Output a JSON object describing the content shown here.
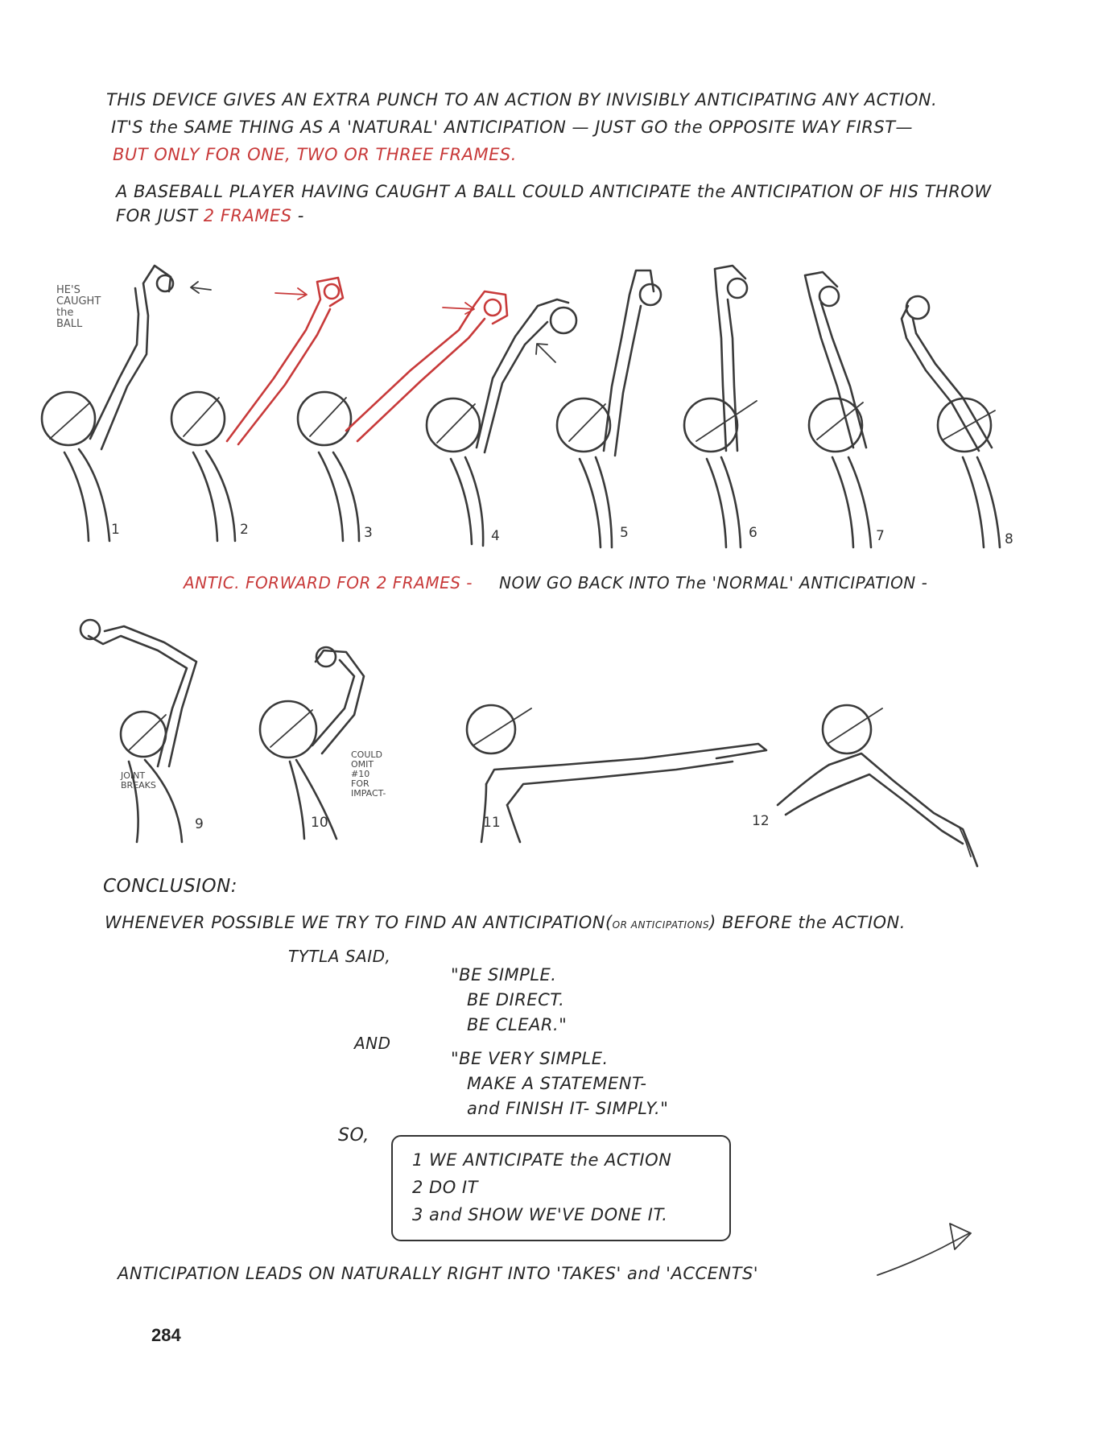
{
  "intro": {
    "line1": "THIS DEVICE GIVES AN EXTRA PUNCH TO AN ACTION BY INVISIBLY ANTICIPATING ANY ACTION.",
    "line2": "IT'S the SAME THING AS A 'NATURAL' ANTICIPATION — JUST GO the OPPOSITE WAY FIRST—",
    "line3_red": "BUT ONLY FOR ONE, TWO OR THREE FRAMES.",
    "line4": "A BASEBALL PLAYER HAVING CAUGHT A BALL COULD ANTICIPATE the ANTICIPATION OF HIS THROW",
    "line5_prefix": "FOR JUST",
    "line5_red": "2 FRAMES",
    "line5_suffix": "-"
  },
  "row1": {
    "note": [
      "HE'S",
      "CAUGHT",
      "the",
      "BALL"
    ],
    "frame_numbers": [
      "1",
      "2",
      "3",
      "4",
      "5",
      "6",
      "7",
      "8"
    ],
    "caption_red": "ANTIC. FORWARD FOR 2 FRAMES -",
    "caption_black": "NOW GO BACK INTO The 'NORMAL' ANTICIPATION -"
  },
  "row2": {
    "note_joint": [
      "JOINT",
      "BREAKS"
    ],
    "note_omit": [
      "COULD",
      "OMIT",
      "#10",
      "FOR",
      "IMPACT-"
    ],
    "frame_numbers": [
      "9",
      "10",
      "11",
      "12"
    ]
  },
  "conclusion": {
    "heading": "CONCLUSION:",
    "line1_a": "WHENEVER POSSIBLE WE TRY TO FIND AN ANTICIPATION",
    "line1_paren": "OR ANTICIPATIONS",
    "line1_b": "BEFORE the ACTION.",
    "tytla": "TYTLA SAID,",
    "quote1": [
      "\"BE SIMPLE.",
      "BE DIRECT.",
      "BE CLEAR.\""
    ],
    "and": "AND",
    "quote2": [
      "\"BE VERY SIMPLE.",
      "MAKE A STATEMENT-",
      "and FINISH IT- SIMPLY.\""
    ],
    "so": "SO,",
    "steps": [
      "1  WE ANTICIPATE the ACTION",
      "2  DO IT",
      "3  and SHOW WE'VE DONE IT."
    ],
    "final": "ANTICIPATION LEADS ON NATURALLY RIGHT INTO 'TAKES' and 'ACCENTS'"
  },
  "page_number": "284",
  "colors": {
    "ink": "#262626",
    "red_ink": "#c83a3a"
  }
}
